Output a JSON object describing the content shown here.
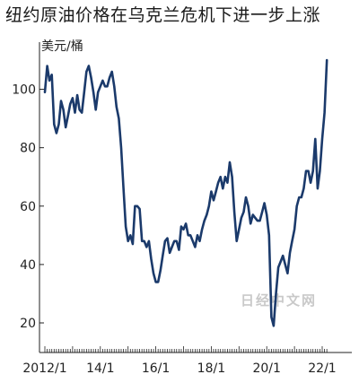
{
  "chart_data": {
    "type": "line",
    "title": "纽约原油价格在乌克兰危机下进一步上涨",
    "ylabel": "美元/桶",
    "xlabel": "",
    "ylim": [
      10,
      115
    ],
    "yticks": [
      20,
      40,
      60,
      80,
      100
    ],
    "xticks": [
      "2012/1",
      "14/1",
      "16/1",
      "18/1",
      "20/1",
      "22/1"
    ],
    "watermark": "日经中文网",
    "line_color": "#1b3a6b",
    "grid": false,
    "x": [
      "2012-01",
      "2012-02",
      "2012-03",
      "2012-04",
      "2012-05",
      "2012-06",
      "2012-07",
      "2012-08",
      "2012-09",
      "2012-10",
      "2012-11",
      "2012-12",
      "2013-01",
      "2013-02",
      "2013-03",
      "2013-04",
      "2013-05",
      "2013-06",
      "2013-07",
      "2013-08",
      "2013-09",
      "2013-10",
      "2013-11",
      "2013-12",
      "2014-01",
      "2014-02",
      "2014-03",
      "2014-04",
      "2014-05",
      "2014-06",
      "2014-07",
      "2014-08",
      "2014-09",
      "2014-10",
      "2014-11",
      "2014-12",
      "2015-01",
      "2015-02",
      "2015-03",
      "2015-04",
      "2015-05",
      "2015-06",
      "2015-07",
      "2015-08",
      "2015-09",
      "2015-10",
      "2015-11",
      "2015-12",
      "2016-01",
      "2016-02",
      "2016-03",
      "2016-04",
      "2016-05",
      "2016-06",
      "2016-07",
      "2016-08",
      "2016-09",
      "2016-10",
      "2016-11",
      "2016-12",
      "2017-01",
      "2017-02",
      "2017-03",
      "2017-04",
      "2017-05",
      "2017-06",
      "2017-07",
      "2017-08",
      "2017-09",
      "2017-10",
      "2017-11",
      "2017-12",
      "2018-01",
      "2018-02",
      "2018-03",
      "2018-04",
      "2018-05",
      "2018-06",
      "2018-07",
      "2018-08",
      "2018-09",
      "2018-10",
      "2018-11",
      "2018-12",
      "2019-01",
      "2019-02",
      "2019-03",
      "2019-04",
      "2019-05",
      "2019-06",
      "2019-07",
      "2019-08",
      "2019-09",
      "2019-10",
      "2019-11",
      "2019-12",
      "2020-01",
      "2020-02",
      "2020-03",
      "2020-04",
      "2020-05",
      "2020-06",
      "2020-07",
      "2020-08",
      "2020-09",
      "2020-10",
      "2020-11",
      "2020-12",
      "2021-01",
      "2021-02",
      "2021-03",
      "2021-04",
      "2021-05",
      "2021-06",
      "2021-07",
      "2021-08",
      "2021-09",
      "2021-10",
      "2021-11",
      "2021-12",
      "2022-01",
      "2022-02",
      "2022-03"
    ],
    "series": [
      {
        "values": [
          99,
          108,
          103,
          105,
          88,
          85,
          88,
          96,
          93,
          87,
          91,
          95,
          97,
          92,
          98,
          93,
          92,
          99,
          106,
          108,
          104,
          99,
          93,
          99,
          101,
          103,
          101,
          101,
          104,
          106,
          101,
          94,
          90,
          80,
          66,
          53,
          48,
          50,
          47,
          60,
          60,
          59,
          48,
          48,
          46,
          48,
          42,
          37,
          34,
          34,
          38,
          43,
          48,
          49,
          44,
          46,
          48,
          48,
          45,
          53,
          52,
          54,
          50,
          50,
          48,
          46,
          50,
          48,
          52,
          55,
          57,
          60,
          65,
          62,
          65,
          68,
          70,
          66,
          70,
          68,
          75,
          70,
          58,
          48,
          52,
          56,
          58,
          63,
          60,
          54,
          57,
          56,
          55,
          55,
          58,
          61,
          57,
          50,
          22,
          19,
          30,
          39,
          41,
          43,
          40,
          37,
          44,
          48,
          52,
          60,
          63,
          63,
          66,
          72,
          72,
          68,
          72,
          83,
          66,
          72,
          83,
          92,
          110
        ]
      }
    ]
  }
}
